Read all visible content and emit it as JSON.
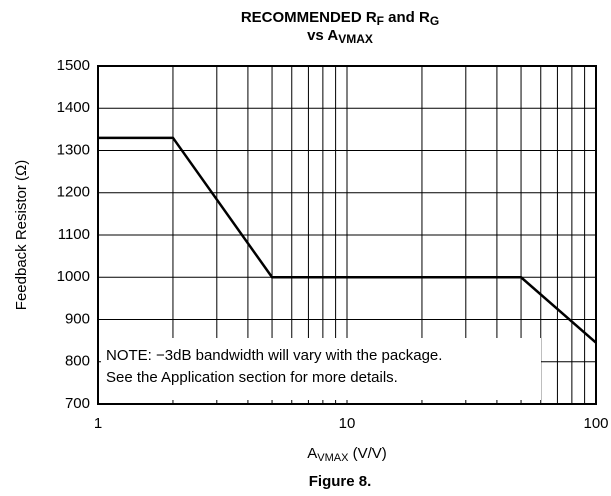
{
  "chart_data": {
    "type": "line",
    "title": [
      "RECOMMENDED R",
      "F",
      " and R",
      "G"
    ],
    "subtitle": [
      "vs A",
      "VMAX"
    ],
    "x_label": [
      "A",
      "VMAX",
      " (V/V)"
    ],
    "y_label": "Feedback Resistor (Ω)",
    "caption": "Figure 8.",
    "annotations": [
      "NOTE: −3dB bandwidth will vary with the package.",
      "See the Application section for more details."
    ],
    "x": [
      1,
      2,
      5,
      50,
      100
    ],
    "series": [
      {
        "name": "RF",
        "color": "#000000",
        "values": [
          1330,
          1330,
          1000,
          1000,
          845
        ]
      }
    ],
    "xlim": [
      1,
      100
    ],
    "xticks": [
      1,
      10,
      100
    ],
    "xscale": "log",
    "ylim": [
      700,
      1500
    ],
    "yticks": [
      700,
      800,
      900,
      1000,
      1100,
      1200,
      1300,
      1400,
      1500
    ],
    "grid": true
  }
}
